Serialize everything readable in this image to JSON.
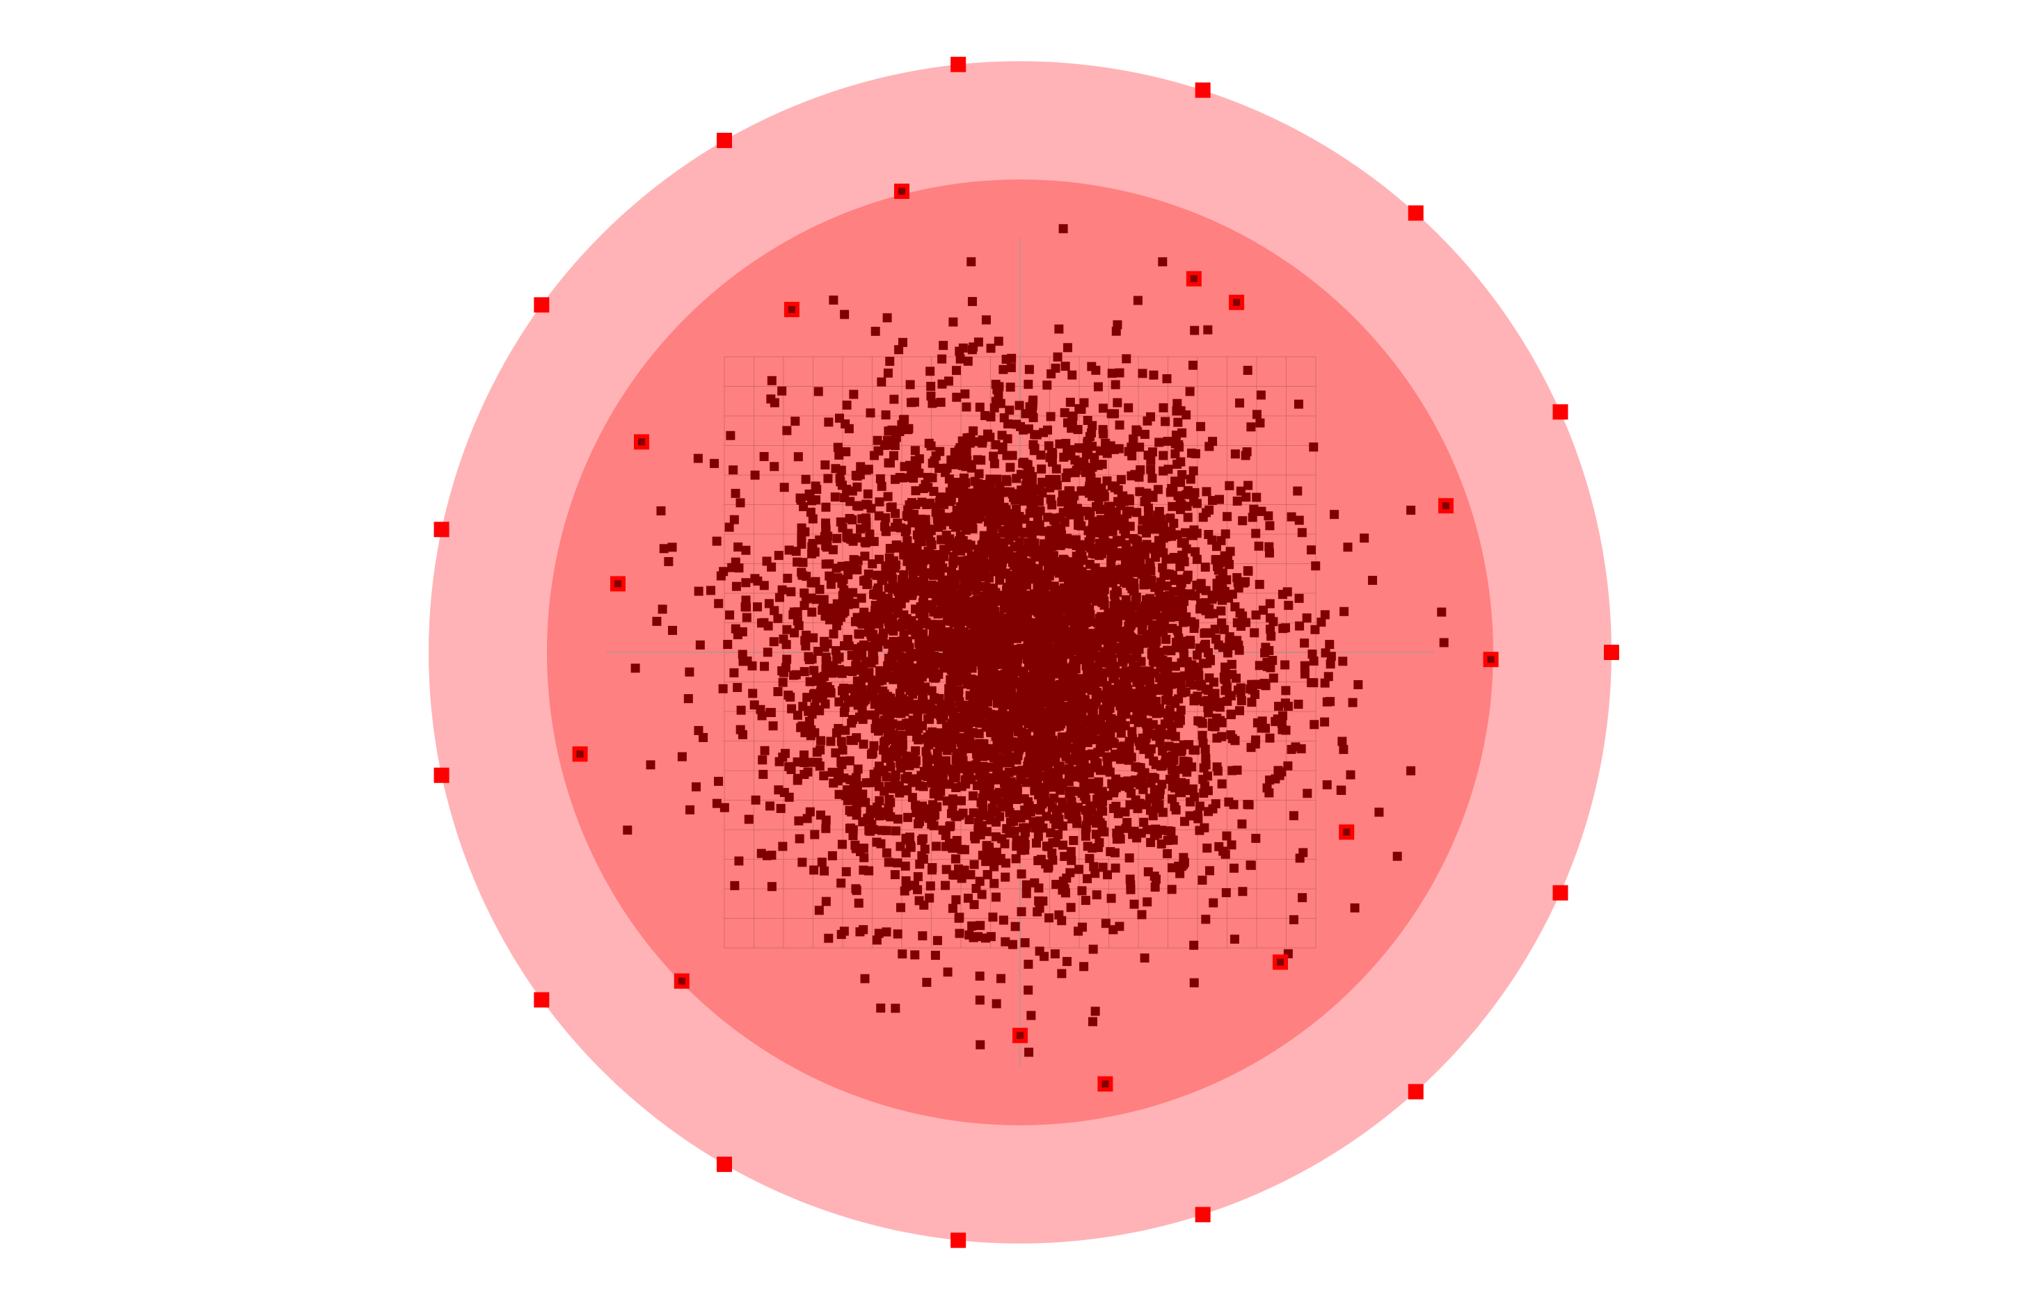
{
  "chart_data": {
    "type": "scatter",
    "title": "",
    "xlabel": "",
    "ylabel": "",
    "xlim": [
      -5,
      5
    ],
    "ylim": [
      -5,
      5
    ],
    "grid": true,
    "grid_range": [
      -2.5,
      2.5
    ],
    "grid_step": 0.25,
    "legend": "none",
    "regions": [
      {
        "shape": "circle",
        "radius": 5,
        "color": "#ffb3b6"
      },
      {
        "shape": "circle",
        "radius": 4,
        "color": "#ff8080"
      }
    ],
    "series": [
      {
        "distribution": "gaussian-cluster",
        "center": [
          0,
          0
        ],
        "sigma": 1.0,
        "count": 5000,
        "color": "#800000"
      },
      {
        "distribution": "ring-markers",
        "radius": 5,
        "angles_deg": [
          0,
          24,
          48,
          72,
          96,
          120,
          144,
          168,
          192,
          216,
          240,
          264,
          288,
          312,
          336
        ],
        "color": "#ff0000"
      },
      {
        "distribution": "highlighted-points",
        "color": "#ff0000",
        "inner_color": "#800000",
        "points": [
          [
            -1.0,
            3.9
          ],
          [
            -1.93,
            2.9
          ],
          [
            1.47,
            3.16
          ],
          [
            1.83,
            2.96
          ],
          [
            -3.2,
            1.78
          ],
          [
            3.6,
            1.24
          ],
          [
            -3.4,
            0.58
          ],
          [
            3.98,
            -0.06
          ],
          [
            -3.72,
            -0.86
          ],
          [
            2.76,
            -1.52
          ],
          [
            -2.86,
            -2.78
          ],
          [
            2.2,
            -2.62
          ],
          [
            0.0,
            -3.24
          ],
          [
            0.72,
            -3.65
          ]
        ]
      }
    ]
  }
}
